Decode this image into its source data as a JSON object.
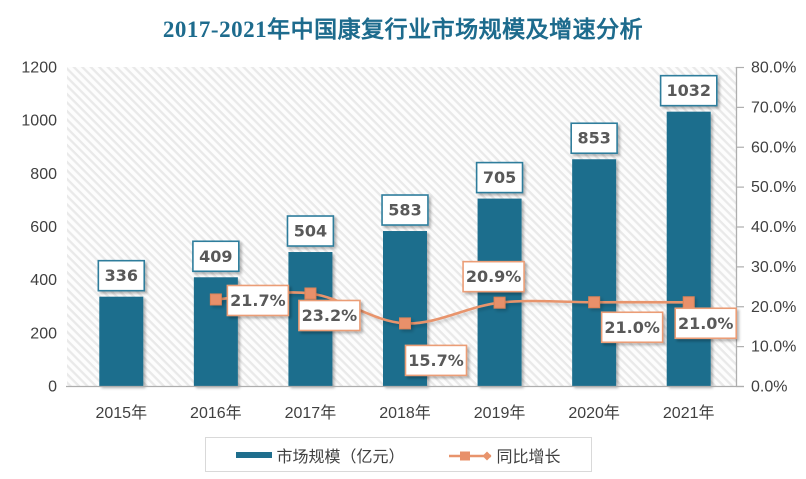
{
  "title": "2017-2021年中国康复行业市场规模及增速分析",
  "chart_data": {
    "type": "bar+line combo",
    "categories": [
      "2015年",
      "2016年",
      "2017年",
      "2018年",
      "2019年",
      "2020年",
      "2021年"
    ],
    "series": [
      {
        "name": "市场规模（亿元）",
        "type": "bar",
        "axis": "left",
        "values": [
          336,
          409,
          504,
          583,
          705,
          853,
          1032
        ],
        "data_labels": [
          "336",
          "409",
          "504",
          "583",
          "705",
          "853",
          "1032"
        ]
      },
      {
        "name": "同比增长",
        "type": "line",
        "axis": "right",
        "unit": "%",
        "values": [
          null,
          21.7,
          23.2,
          15.7,
          20.9,
          21.0,
          21.0
        ],
        "data_labels": [
          null,
          "21.7%",
          "23.2%",
          "15.7%",
          "20.9%",
          "21.0%",
          "21.0%"
        ]
      }
    ],
    "left_axis": {
      "min": 0,
      "max": 1200,
      "step": 200,
      "tick_labels": [
        "0",
        "200",
        "400",
        "600",
        "800",
        "1000",
        "1200"
      ]
    },
    "right_axis": {
      "min": 0,
      "max": 80,
      "step": 10,
      "tick_labels": [
        "0.0%",
        "10.0%",
        "20.0%",
        "30.0%",
        "40.0%",
        "50.0%",
        "60.0%",
        "70.0%",
        "80.0%"
      ]
    },
    "grid": false,
    "plot_background": "diagonal-hatch",
    "legend_position": "bottom"
  },
  "legend": {
    "items": [
      {
        "label": "市场规模（亿元）",
        "swatch": "bar-swatch"
      },
      {
        "label": "同比增长",
        "swatch": "line-marker-swatch"
      }
    ]
  },
  "colors": {
    "title": "#1d6b8d",
    "bar": "#1f6e8d",
    "line": "#e8946c",
    "marker_fill": "#e8906a",
    "marker_stroke": "#dd8257",
    "bar_label_border": "#2e7d9c",
    "line_label_border": "#eb9d76",
    "label_text": "#595959",
    "axis_text": "#404040",
    "axis_line": "#aeaeae",
    "hatch_stripe": "#e9e9e9",
    "legend_border": "#d9d9d9"
  }
}
